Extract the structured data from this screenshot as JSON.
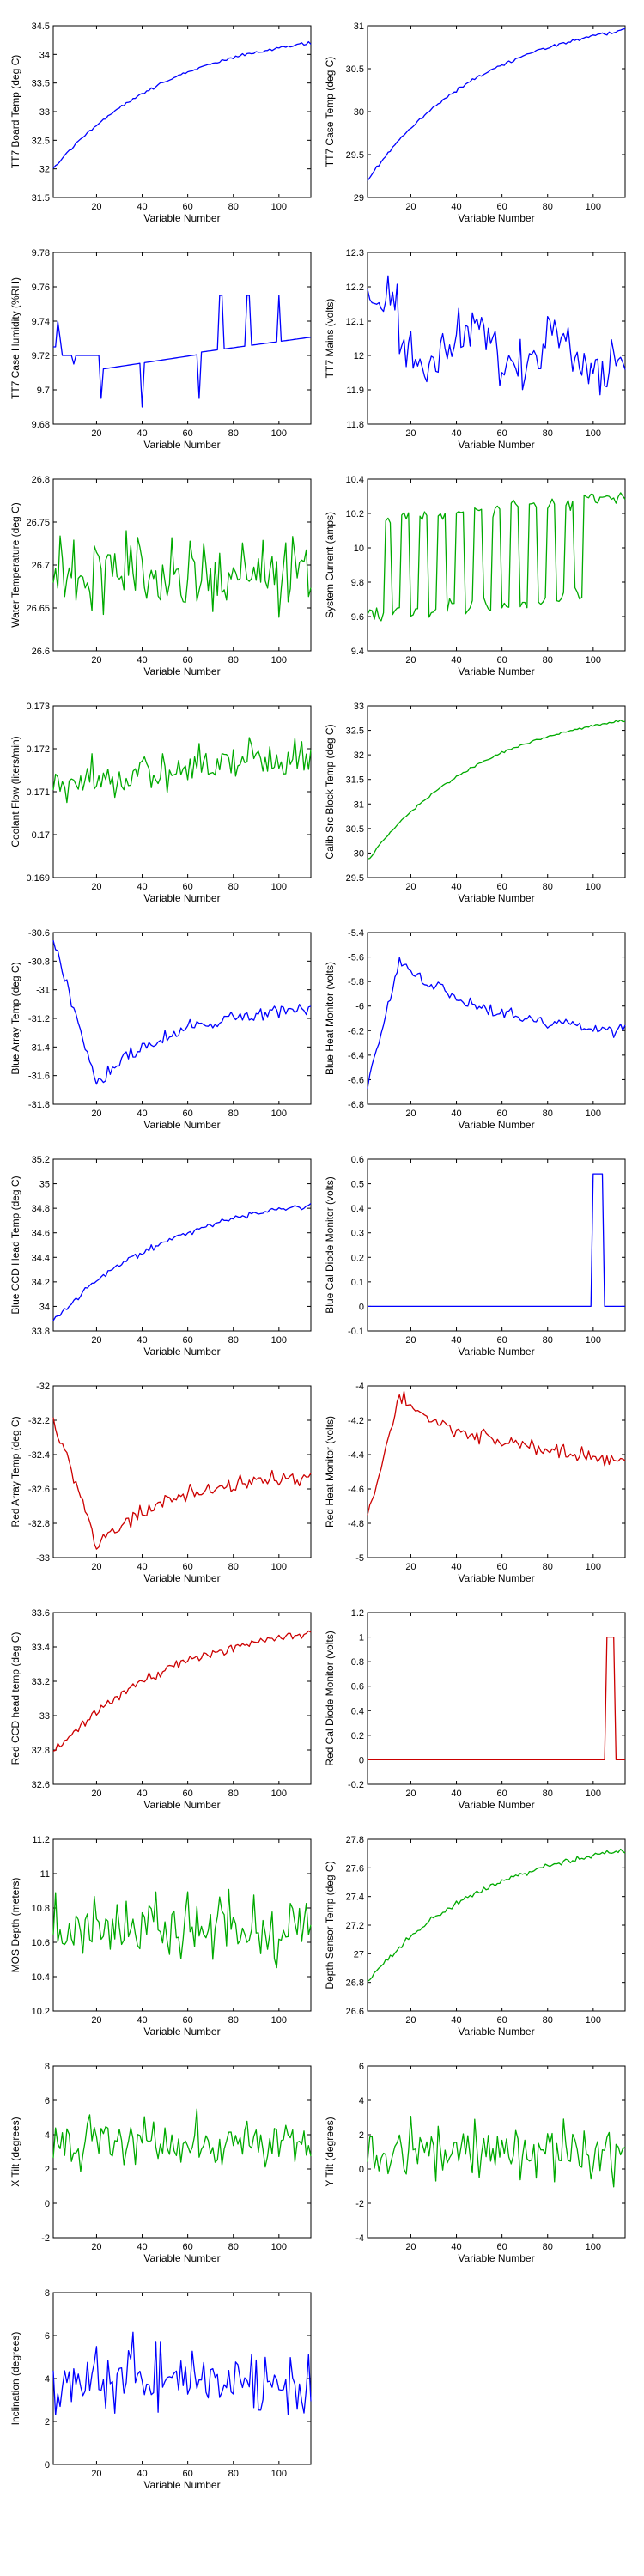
{
  "chart_data": [
    {
      "type": "line",
      "ylabel": "TT7 Board Temp (deg C)",
      "xlabel": "Variable Number",
      "xlim": [
        1,
        114
      ],
      "xticks": [
        20,
        40,
        60,
        80,
        100
      ],
      "ylim": [
        31.5,
        34.5
      ],
      "yticks": [
        31.5,
        32,
        32.5,
        33,
        33.5,
        34,
        34.5
      ],
      "color": "#0000ff",
      "shape": "rise",
      "lo": 32.0,
      "hi": 34.2,
      "noise": 0.02
    },
    {
      "type": "line",
      "ylabel": "TT7 Case Temp (deg C)",
      "xlabel": "Variable Number",
      "xlim": [
        1,
        114
      ],
      "xticks": [
        20,
        40,
        60,
        80,
        100
      ],
      "ylim": [
        29,
        31
      ],
      "yticks": [
        29,
        29.5,
        30,
        30.5,
        31
      ],
      "color": "#0000ff",
      "shape": "rise",
      "lo": 29.2,
      "hi": 30.95,
      "noise": 0.015
    },
    {
      "type": "line",
      "ylabel": "TT7 Case Humidity (%RH)",
      "xlabel": "Variable Number",
      "xlim": [
        1,
        114
      ],
      "xticks": [
        20,
        40,
        60,
        80,
        100
      ],
      "ylim": [
        9.68,
        9.78
      ],
      "yticks": [
        9.68,
        9.7,
        9.72,
        9.74,
        9.76,
        9.78
      ],
      "color": "#0000ff",
      "shape": "steps",
      "lo": 9.705,
      "hi": 9.73,
      "noise": 0.0
    },
    {
      "type": "line",
      "ylabel": "TT7 Mains  (volts)",
      "xlabel": "Variable Number",
      "xlim": [
        1,
        114
      ],
      "xticks": [
        20,
        40,
        60,
        80,
        100
      ],
      "ylim": [
        11.8,
        12.3
      ],
      "yticks": [
        11.8,
        11.9,
        12,
        12.1,
        12.2,
        12.3
      ],
      "color": "#0000ff",
      "shape": "wander",
      "lo": 12.02,
      "hi": 12.02,
      "noise": 0.09
    },
    {
      "type": "line",
      "ylabel": "Water Temperature (deg C)",
      "xlabel": "Variable Number",
      "xlim": [
        1,
        114
      ],
      "xticks": [
        20,
        40,
        60,
        80,
        100
      ],
      "ylim": [
        26.6,
        26.8
      ],
      "yticks": [
        26.6,
        26.65,
        26.7,
        26.75,
        26.8
      ],
      "color": "#00aa00",
      "shape": "noise",
      "lo": 26.69,
      "hi": 26.69,
      "noise": 0.04
    },
    {
      "type": "line",
      "ylabel": "System Current (amps)",
      "xlabel": "Variable Number",
      "xlim": [
        1,
        114
      ],
      "xticks": [
        20,
        40,
        60,
        80,
        100
      ],
      "ylim": [
        9.4,
        10.4
      ],
      "yticks": [
        9.4,
        9.6,
        9.8,
        10,
        10.2,
        10.4
      ],
      "color": "#00aa00",
      "shape": "square",
      "lo": 9.6,
      "hi": 10.15,
      "noise": 0.04
    },
    {
      "type": "line",
      "ylabel": "Coolant Flow (liters/min)",
      "xlabel": "Variable Number",
      "xlim": [
        1,
        114
      ],
      "xticks": [
        20,
        40,
        60,
        80,
        100
      ],
      "ylim": [
        0.169,
        0.173
      ],
      "yticks": [
        0.169,
        0.17,
        0.171,
        0.172,
        0.173
      ],
      "color": "#00aa00",
      "shape": "noise",
      "lo": 0.1712,
      "hi": 0.1718,
      "noise": 0.0004
    },
    {
      "type": "line",
      "ylabel": "Calib Src Block Temp (deg C)",
      "xlabel": "Variable Number",
      "xlim": [
        1,
        114
      ],
      "xticks": [
        20,
        40,
        60,
        80,
        100
      ],
      "ylim": [
        29.5,
        33
      ],
      "yticks": [
        29.5,
        30,
        30.5,
        31,
        31.5,
        32,
        32.5,
        33
      ],
      "color": "#00aa00",
      "shape": "rise",
      "lo": 29.85,
      "hi": 32.7,
      "noise": 0.02
    },
    {
      "type": "line",
      "ylabel": "Blue Array Temp (deg C)",
      "xlabel": "Variable Number",
      "xlim": [
        1,
        114
      ],
      "xticks": [
        20,
        40,
        60,
        80,
        100
      ],
      "ylim": [
        -31.8,
        -30.6
      ],
      "yticks": [
        -31.8,
        -31.6,
        -31.4,
        -31.2,
        -31,
        -30.8,
        -30.6
      ],
      "color": "#0000ff",
      "shape": "dipRecover",
      "lo": -31.65,
      "hi": -31.1,
      "start": -30.65,
      "noise": 0.04
    },
    {
      "type": "line",
      "ylabel": "Blue Heat Monitor (volts)",
      "xlabel": "Variable Number",
      "xlim": [
        1,
        114
      ],
      "xticks": [
        20,
        40,
        60,
        80,
        100
      ],
      "ylim": [
        -6.8,
        -5.4
      ],
      "yticks": [
        -6.8,
        -6.6,
        -6.4,
        -6.2,
        -6,
        -5.8,
        -5.6,
        -5.4
      ],
      "color": "#0000ff",
      "shape": "jumpDecay",
      "lo": -6.65,
      "hi": -5.65,
      "end": -6.25,
      "noise": 0.04
    },
    {
      "type": "line",
      "ylabel": "Blue CCD Head Temp (deg C)",
      "xlabel": "Variable Number",
      "xlim": [
        1,
        114
      ],
      "xticks": [
        20,
        40,
        60,
        80,
        100
      ],
      "ylim": [
        33.8,
        35.2
      ],
      "yticks": [
        33.8,
        34,
        34.2,
        34.4,
        34.6,
        34.8,
        35,
        35.2
      ],
      "color": "#0000ff",
      "shape": "rise",
      "lo": 33.88,
      "hi": 34.82,
      "noise": 0.02
    },
    {
      "type": "line",
      "ylabel": "Blue Cal Diode Monitor (volts)",
      "xlabel": "Variable Number",
      "xlim": [
        1,
        114
      ],
      "xticks": [
        20,
        40,
        60,
        80,
        100
      ],
      "ylim": [
        -0.1,
        0.6
      ],
      "yticks": [
        -0.1,
        0,
        0.1,
        0.2,
        0.3,
        0.4,
        0.5,
        0.6
      ],
      "color": "#0000ff",
      "shape": "pulse",
      "lo": 0.0,
      "hi": 0.54,
      "p0": 100,
      "p1": 104,
      "noise": 0.0
    },
    {
      "type": "line",
      "ylabel": "Red Array Temp (deg C)",
      "xlabel": "Variable Number",
      "xlim": [
        1,
        114
      ],
      "xticks": [
        20,
        40,
        60,
        80,
        100
      ],
      "ylim": [
        -33,
        -32
      ],
      "yticks": [
        -33,
        -32.8,
        -32.6,
        -32.4,
        -32.2,
        -32
      ],
      "color": "#cc0000",
      "shape": "dipRecover",
      "lo": -32.92,
      "hi": -32.5,
      "start": -32.2,
      "noise": 0.04
    },
    {
      "type": "line",
      "ylabel": "Red Heat Monitor (volts)",
      "xlabel": "Variable Number",
      "xlim": [
        1,
        114
      ],
      "xticks": [
        20,
        40,
        60,
        80,
        100
      ],
      "ylim": [
        -5,
        -4
      ],
      "yticks": [
        -5,
        -4.8,
        -4.6,
        -4.4,
        -4.2,
        -4
      ],
      "color": "#cc0000",
      "shape": "jumpDecay",
      "lo": -4.75,
      "hi": -4.08,
      "end": -4.45,
      "noise": 0.04
    },
    {
      "type": "line",
      "ylabel": "Red CCD head temp (deg C)",
      "xlabel": "Variable Number",
      "xlim": [
        1,
        114
      ],
      "xticks": [
        20,
        40,
        60,
        80,
        100
      ],
      "ylim": [
        32.6,
        33.6
      ],
      "yticks": [
        32.6,
        32.8,
        33,
        33.2,
        33.4,
        33.6
      ],
      "color": "#cc0000",
      "shape": "rise",
      "lo": 32.78,
      "hi": 33.48,
      "noise": 0.02
    },
    {
      "type": "line",
      "ylabel": "Red Cal Diode Monitor (volts)",
      "xlabel": "Variable Number",
      "xlim": [
        1,
        114
      ],
      "xticks": [
        20,
        40,
        60,
        80,
        100
      ],
      "ylim": [
        -0.2,
        1.2
      ],
      "yticks": [
        -0.2,
        0,
        0.2,
        0.4,
        0.6,
        0.8,
        1,
        1.2
      ],
      "color": "#cc0000",
      "shape": "pulse",
      "lo": 0.0,
      "hi": 1.0,
      "p0": 106,
      "p1": 109,
      "noise": 0.0
    },
    {
      "type": "line",
      "ylabel": "MOS Depth  (meters)",
      "xlabel": "Variable Number",
      "xlim": [
        1,
        114
      ],
      "xticks": [
        20,
        40,
        60,
        80,
        100
      ],
      "ylim": [
        10.2,
        11.2
      ],
      "yticks": [
        10.2,
        10.4,
        10.6,
        10.8,
        11,
        11.2
      ],
      "color": "#00aa00",
      "shape": "noise",
      "lo": 10.68,
      "hi": 10.68,
      "noise": 0.14
    },
    {
      "type": "line",
      "ylabel": "Depth Sensor Temp (deg C)",
      "xlabel": "Variable Number",
      "xlim": [
        1,
        114
      ],
      "xticks": [
        20,
        40,
        60,
        80,
        100
      ],
      "ylim": [
        26.6,
        27.8
      ],
      "yticks": [
        26.6,
        26.8,
        27,
        27.2,
        27.4,
        27.6,
        27.8
      ],
      "color": "#00aa00",
      "shape": "rise",
      "lo": 26.8,
      "hi": 27.72,
      "noise": 0.015
    },
    {
      "type": "line",
      "ylabel": "X Tilt  (degrees)",
      "xlabel": "Variable Number",
      "xlim": [
        1,
        114
      ],
      "xticks": [
        20,
        40,
        60,
        80,
        100
      ],
      "ylim": [
        -2,
        8
      ],
      "yticks": [
        -2,
        0,
        2,
        4,
        6,
        8
      ],
      "color": "#00aa00",
      "shape": "noise",
      "lo": 3.5,
      "hi": 3.5,
      "noise": 1.3
    },
    {
      "type": "line",
      "ylabel": "Y Tilt  (degrees)",
      "xlabel": "Variable Number",
      "xlim": [
        1,
        114
      ],
      "xticks": [
        20,
        40,
        60,
        80,
        100
      ],
      "ylim": [
        -4,
        6
      ],
      "yticks": [
        -4,
        -2,
        0,
        2,
        4,
        6
      ],
      "color": "#00aa00",
      "shape": "noise",
      "lo": 1.0,
      "hi": 1.0,
      "noise": 1.3
    },
    {
      "type": "line",
      "ylabel": "Inclination  (degrees)",
      "xlabel": "Variable Number",
      "xlim": [
        1,
        114
      ],
      "xticks": [
        20,
        40,
        60,
        80,
        100
      ],
      "ylim": [
        0,
        8
      ],
      "yticks": [
        0,
        2,
        4,
        6,
        8
      ],
      "color": "#0000ff",
      "shape": "noise",
      "lo": 4.0,
      "hi": 4.0,
      "noise": 1.3
    }
  ]
}
